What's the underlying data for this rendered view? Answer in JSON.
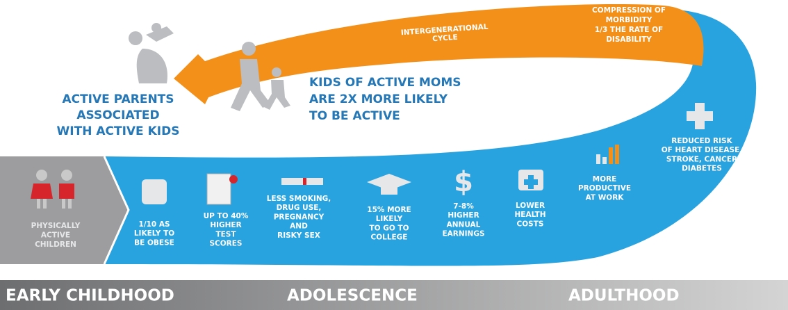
{
  "cycle": {
    "lines": [
      "INTERGENERATIONAL",
      "CYCLE"
    ]
  },
  "compression": {
    "lines": [
      "COMPRESSION OF",
      "MORBIDITY",
      "1/3 THE RATE OF",
      "DISABILITY"
    ]
  },
  "parents": {
    "lines": [
      "ACTIVE PARENTS",
      "ASSOCIATED",
      "WITH ACTIVE KIDS"
    ]
  },
  "moms": {
    "lines": [
      "KIDS OF ACTIVE MOMS",
      "ARE 2X MORE LIKELY",
      "TO BE ACTIVE"
    ]
  },
  "start": {
    "lines": [
      "PHYSICALLY",
      "ACTIVE",
      "CHILDREN"
    ]
  },
  "benefits": [
    {
      "lines": [
        "1/10 AS",
        "LIKELY TO",
        "BE OBESE"
      ]
    },
    {
      "lines": [
        "UP TO 40%",
        "HIGHER",
        "TEST",
        "SCORES"
      ]
    },
    {
      "lines": [
        "LESS SMOKING,",
        "DRUG USE,",
        "PREGNANCY",
        "AND",
        "RISKY SEX"
      ]
    },
    {
      "lines": [
        "15% MORE",
        "LIKELY",
        "TO GO TO",
        "COLLEGE"
      ]
    },
    {
      "lines": [
        "7-8%",
        "HIGHER",
        "ANNUAL",
        "EARNINGS"
      ]
    },
    {
      "lines": [
        "LOWER",
        "HEALTH",
        "COSTS"
      ]
    },
    {
      "lines": [
        "MORE",
        "PRODUCTIVE",
        "AT WORK"
      ]
    },
    {
      "lines": [
        "REDUCED RISK",
        "OF HEART DISEASE,",
        "STROKE, CANCER",
        "DIABETES"
      ]
    }
  ],
  "stages": [
    "EARLY CHILDHOOD",
    "ADOLESCENCE",
    "ADULTHOOD"
  ]
}
